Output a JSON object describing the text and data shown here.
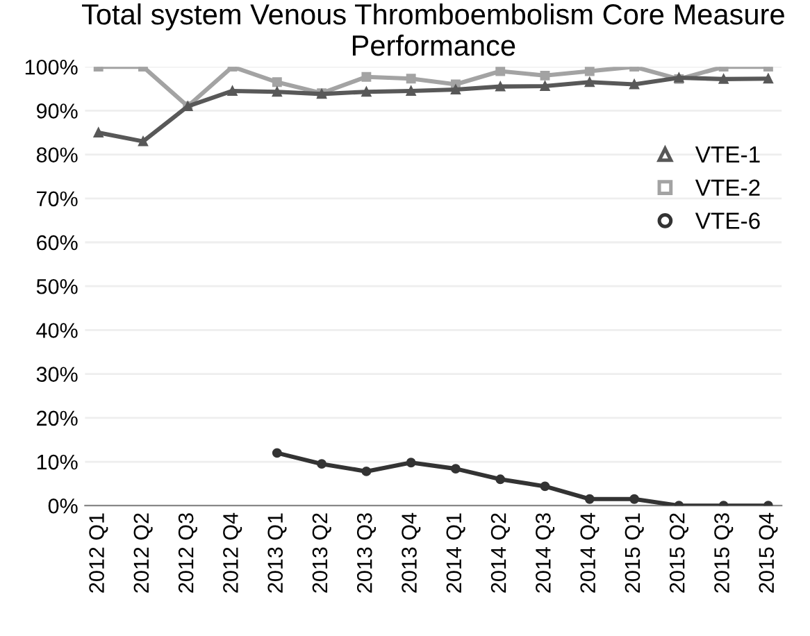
{
  "chart_data": {
    "type": "line",
    "title": "Total system Venous Thromboembolism Core Measure Performance",
    "categories": [
      "2012 Q1",
      "2012 Q2",
      "2012 Q3",
      "2012 Q4",
      "2013 Q1",
      "2013 Q2",
      "2013 Q3",
      "2013 Q4",
      "2014 Q1",
      "2014 Q2",
      "2014 Q3",
      "2014 Q4",
      "2015 Q1",
      "2015 Q2",
      "2015 Q3",
      "2015 Q4"
    ],
    "series": [
      {
        "name": "VTE-1",
        "color": "#585858",
        "marker": "triangle",
        "values": [
          85,
          83,
          91,
          94.5,
          94.3,
          93.8,
          94.3,
          94.5,
          94.8,
          95.5,
          95.6,
          96.5,
          96,
          97.5,
          97.2,
          97.3
        ]
      },
      {
        "name": "VTE-2",
        "color": "#a3a3a3",
        "marker": "square",
        "values": [
          100,
          100,
          91,
          100,
          96.5,
          94,
          97.7,
          97.3,
          96,
          99,
          98,
          99,
          100,
          97.2,
          100,
          100
        ]
      },
      {
        "name": "VTE-6",
        "color": "#333333",
        "marker": "circle",
        "values": [
          null,
          null,
          null,
          null,
          12,
          9.5,
          7.8,
          9.8,
          8.4,
          6,
          4.4,
          1.5,
          1.5,
          0,
          0,
          0
        ]
      }
    ],
    "ylim": [
      0,
      100
    ],
    "yticks": [
      {
        "value": 0,
        "label": "0%"
      },
      {
        "value": 10,
        "label": "10%"
      },
      {
        "value": 20,
        "label": "20%"
      },
      {
        "value": 30,
        "label": "30%"
      },
      {
        "value": 40,
        "label": "40%"
      },
      {
        "value": 50,
        "label": "50%"
      },
      {
        "value": 60,
        "label": "60%"
      },
      {
        "value": 70,
        "label": "70%"
      },
      {
        "value": 80,
        "label": "80%"
      },
      {
        "value": 90,
        "label": "90%"
      },
      {
        "value": 100,
        "label": "100%"
      }
    ],
    "grid": "y",
    "legend": "right",
    "line_style": "solid"
  }
}
